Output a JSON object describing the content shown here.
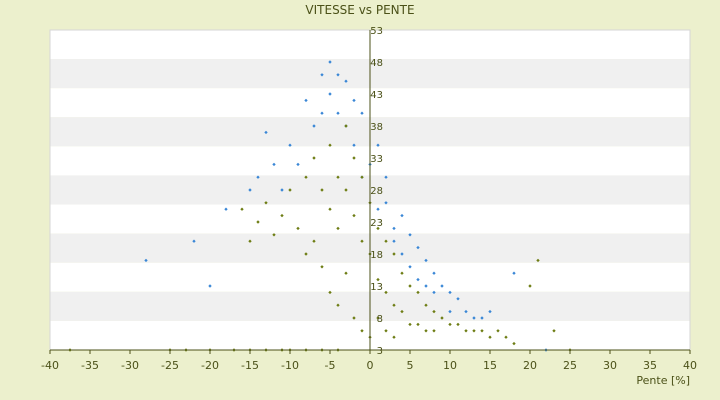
{
  "chart_data": {
    "type": "scatter",
    "title": "VITESSE vs PENTE",
    "xlabel": "Pente [%]",
    "ylabel": "",
    "xlim": [
      -40,
      40
    ],
    "ylim": [
      3,
      53
    ],
    "x_ticks": [
      "-40",
      "-35",
      "-30",
      "-25",
      "-20",
      "-15",
      "-10",
      "-5",
      "0",
      "5",
      "10",
      "15",
      "20",
      "25",
      "30",
      "35",
      "40"
    ],
    "y_ticks": [
      "3",
      "8",
      "13",
      "18",
      "23",
      "28",
      "33",
      "38",
      "43",
      "48",
      "53"
    ],
    "grid": "horizontal alternating bands",
    "legend": "none",
    "colors": {
      "background": "#ecf0cd",
      "plot_band_light": "#ffffff",
      "plot_band_dark": "#f0f0f0",
      "axis": "#4b5118",
      "series_1": "#3a87d6",
      "series_2": "#6e7d14"
    },
    "series": [
      {
        "values": [
          [
            -28,
            17
          ],
          [
            -22,
            20
          ],
          [
            -20,
            13
          ],
          [
            -18,
            25
          ],
          [
            -15,
            28
          ],
          [
            -14,
            30
          ],
          [
            -13,
            37
          ],
          [
            -12,
            32
          ],
          [
            -11,
            28
          ],
          [
            -10,
            35
          ],
          [
            -9,
            32
          ],
          [
            -8,
            42
          ],
          [
            -7,
            38
          ],
          [
            -6,
            40
          ],
          [
            -6,
            46
          ],
          [
            -5,
            43
          ],
          [
            -5,
            48
          ],
          [
            -4,
            46
          ],
          [
            -4,
            40
          ],
          [
            -3,
            45
          ],
          [
            -3,
            38
          ],
          [
            -2,
            42
          ],
          [
            -2,
            35
          ],
          [
            -1,
            40
          ],
          [
            -1,
            30
          ],
          [
            0,
            32
          ],
          [
            1,
            25
          ],
          [
            1,
            35
          ],
          [
            2,
            30
          ],
          [
            2,
            26
          ],
          [
            3,
            22
          ],
          [
            3,
            20
          ],
          [
            4,
            24
          ],
          [
            4,
            18
          ],
          [
            5,
            21
          ],
          [
            5,
            16
          ],
          [
            6,
            19
          ],
          [
            6,
            14
          ],
          [
            7,
            17
          ],
          [
            7,
            13
          ],
          [
            8,
            15
          ],
          [
            8,
            12
          ],
          [
            9,
            13
          ],
          [
            10,
            12
          ],
          [
            10,
            9
          ],
          [
            11,
            11
          ],
          [
            12,
            9
          ],
          [
            13,
            8
          ],
          [
            14,
            8
          ],
          [
            15,
            9
          ],
          [
            18,
            15
          ],
          [
            22,
            3
          ]
        ]
      },
      {
        "values": [
          [
            -37.5,
            3
          ],
          [
            -25,
            3
          ],
          [
            -23,
            3
          ],
          [
            -20,
            3
          ],
          [
            -17,
            3
          ],
          [
            -15,
            3
          ],
          [
            -13,
            3
          ],
          [
            -11,
            3
          ],
          [
            -10,
            3
          ],
          [
            -8,
            3
          ],
          [
            -6,
            3
          ],
          [
            -4,
            3
          ],
          [
            -16,
            25
          ],
          [
            -15,
            20
          ],
          [
            -14,
            23
          ],
          [
            -13,
            26
          ],
          [
            -12,
            21
          ],
          [
            -11,
            24
          ],
          [
            -10,
            28
          ],
          [
            -9,
            22
          ],
          [
            -8,
            30
          ],
          [
            -8,
            18
          ],
          [
            -7,
            33
          ],
          [
            -7,
            20
          ],
          [
            -6,
            28
          ],
          [
            -6,
            16
          ],
          [
            -5,
            35
          ],
          [
            -5,
            25
          ],
          [
            -5,
            12
          ],
          [
            -4,
            30
          ],
          [
            -4,
            22
          ],
          [
            -4,
            10
          ],
          [
            -3,
            38
          ],
          [
            -3,
            28
          ],
          [
            -3,
            15
          ],
          [
            -2,
            33
          ],
          [
            -2,
            24
          ],
          [
            -2,
            8
          ],
          [
            -1,
            30
          ],
          [
            -1,
            20
          ],
          [
            -1,
            6
          ],
          [
            0,
            26
          ],
          [
            0,
            18
          ],
          [
            0,
            5
          ],
          [
            1,
            22
          ],
          [
            1,
            14
          ],
          [
            1,
            8
          ],
          [
            2,
            20
          ],
          [
            2,
            12
          ],
          [
            2,
            6
          ],
          [
            3,
            18
          ],
          [
            3,
            10
          ],
          [
            3,
            5
          ],
          [
            4,
            15
          ],
          [
            4,
            9
          ],
          [
            5,
            13
          ],
          [
            5,
            7
          ],
          [
            6,
            12
          ],
          [
            6,
            7
          ],
          [
            7,
            10
          ],
          [
            7,
            6
          ],
          [
            8,
            9
          ],
          [
            8,
            6
          ],
          [
            9,
            8
          ],
          [
            10,
            7
          ],
          [
            11,
            7
          ],
          [
            12,
            6
          ],
          [
            13,
            6
          ],
          [
            14,
            6
          ],
          [
            15,
            5
          ],
          [
            16,
            6
          ],
          [
            17,
            5
          ],
          [
            18,
            4
          ],
          [
            20,
            13
          ],
          [
            21,
            17
          ],
          [
            23,
            6
          ],
          [
            25,
            3
          ]
        ]
      }
    ]
  }
}
